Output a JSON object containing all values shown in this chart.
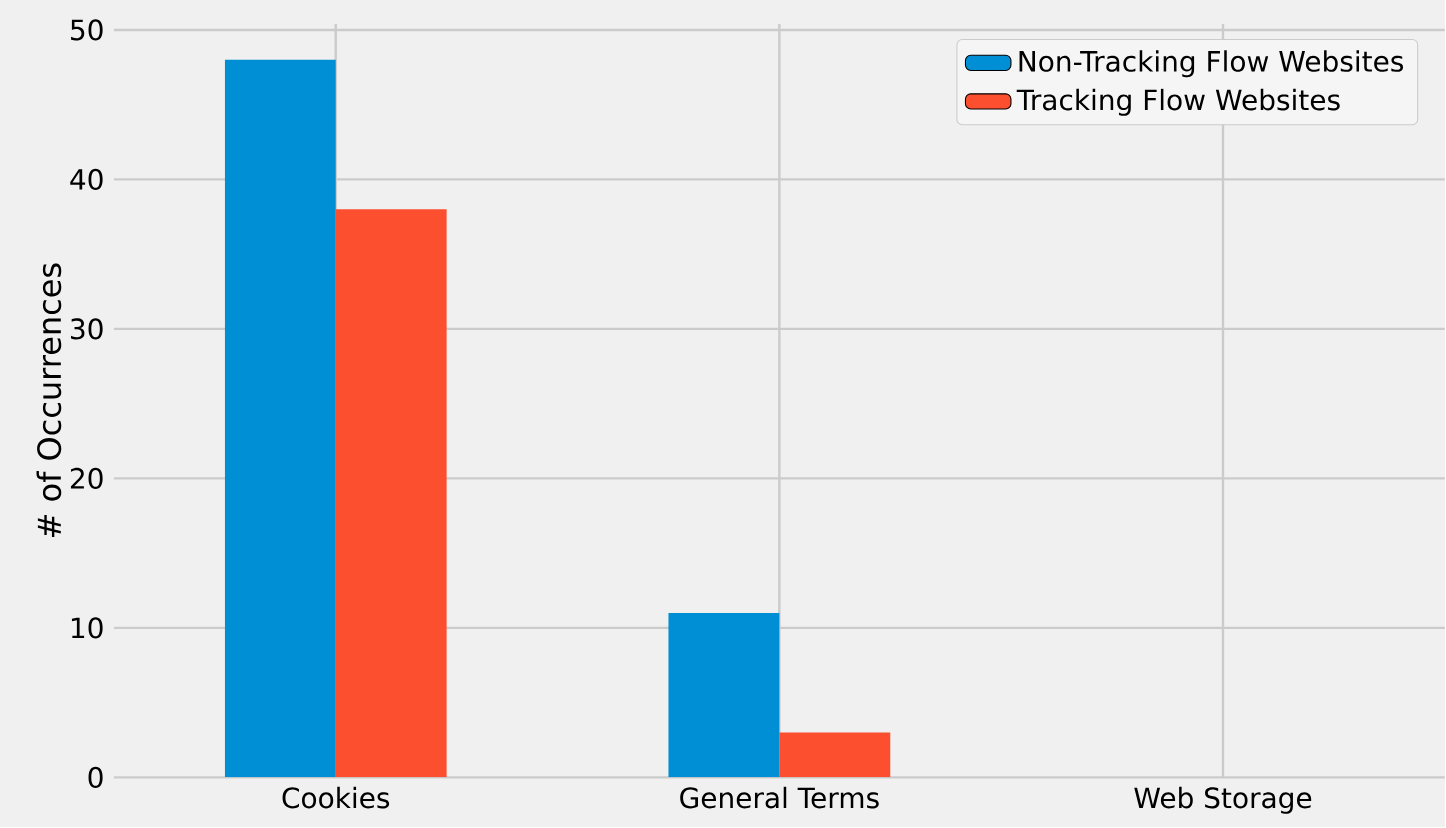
{
  "chart_data": {
    "type": "bar",
    "ylabel": "# of Occurrences",
    "categories": [
      "Cookies",
      "General Terms",
      "Web Storage"
    ],
    "series": [
      {
        "name": "Non-Tracking Flow Websites",
        "color": "#008fd5",
        "values": [
          48,
          11,
          0
        ]
      },
      {
        "name": "Tracking Flow Websites",
        "color": "#fc4f30",
        "values": [
          38,
          3,
          0
        ]
      }
    ],
    "ylim": [
      0,
      50.4
    ],
    "yticks": [
      0,
      10,
      20,
      30,
      40,
      50
    ],
    "grid": true,
    "legend": "top right"
  }
}
